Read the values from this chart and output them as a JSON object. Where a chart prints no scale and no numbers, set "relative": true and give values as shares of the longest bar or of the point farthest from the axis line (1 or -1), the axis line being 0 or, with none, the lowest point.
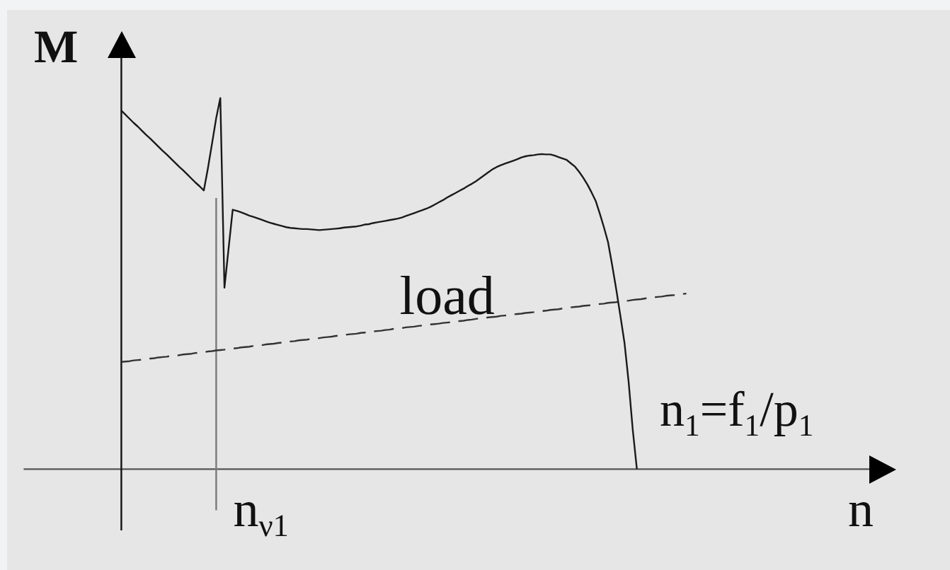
{
  "chart_data": {
    "type": "line",
    "relative": true,
    "marker": "none",
    "xlabel": "n",
    "ylabel": "M",
    "categories": [
      null,
      null,
      null,
      null,
      null,
      null,
      null,
      null,
      null,
      null,
      null,
      null,
      null,
      null,
      null,
      null,
      null,
      null,
      null,
      null,
      null,
      null,
      null,
      null,
      null,
      null,
      null,
      null,
      null,
      null,
      null,
      null,
      null,
      null,
      null,
      null,
      null,
      null,
      null,
      null,
      null,
      null,
      null,
      null,
      null,
      null,
      null,
      null,
      null,
      null,
      null,
      null,
      null,
      null,
      null,
      null,
      null,
      null,
      null,
      null,
      null,
      null,
      null,
      null,
      null,
      null,
      null,
      null,
      null,
      null,
      null,
      null,
      null,
      null,
      null,
      null,
      null,
      null,
      null,
      null,
      null,
      null,
      null,
      null,
      null,
      null,
      null,
      null,
      null,
      null,
      null,
      null,
      null,
      null,
      null,
      null,
      null,
      null,
      null,
      null,
      null,
      null,
      null,
      null,
      null,
      null,
      null,
      null,
      null,
      null,
      null,
      null,
      null,
      null,
      null,
      null,
      null,
      null,
      null,
      null,
      null,
      null,
      null,
      null,
      null,
      null,
      null,
      null,
      null,
      null,
      null,
      null,
      null,
      null,
      null,
      null,
      null,
      null
    ],
    "series": [
      {
        "color": "#1a1a1a",
        "values": [
          0.966,
          0.955,
          0.944,
          0.933,
          0.923,
          0.912,
          0.901,
          0.891,
          0.88,
          0.869,
          0.858,
          0.848,
          0.837,
          0.826,
          0.815,
          0.805,
          0.794,
          0.783,
          0.772,
          0.762,
          0.751,
          0.811,
          0.878,
          0.946,
          1,
          0.489,
          0.594,
          0.699,
          0.696,
          0.692,
          0.688,
          0.683,
          0.68,
          0.676,
          0.672,
          0.668,
          0.664,
          0.661,
          0.658,
          0.655,
          0.652,
          0.65,
          0.649,
          0.648,
          0.647,
          0.647,
          0.646,
          0.645,
          0.644,
          0.645,
          0.646,
          0.647,
          0.648,
          0.649,
          0.651,
          0.652,
          0.653,
          0.654,
          0.656,
          0.659,
          0.66,
          0.663,
          0.665,
          0.667,
          0.669,
          0.671,
          0.673,
          0.675,
          0.678,
          0.682,
          0.686,
          0.69,
          0.694,
          0.698,
          0.702,
          0.707,
          0.713,
          0.719,
          0.725,
          0.732,
          0.738,
          0.744,
          0.75,
          0.756,
          0.763,
          0.769,
          0.776,
          0.784,
          0.792,
          0.8,
          0.808,
          0.814,
          0.819,
          0.823,
          0.827,
          0.831,
          0.835,
          0.84,
          0.843,
          0.845,
          0.846,
          0.848,
          0.849,
          0.848,
          0.848,
          0.845,
          0.841,
          0.837,
          0.833,
          0.824,
          0.815,
          0.801,
          0.785,
          0.767,
          0.746,
          0.723,
          0.689,
          0.652,
          0.612,
          0.55,
          0.484,
          0.413,
          0.34,
          0.235,
          0.106,
          0,
          null,
          null,
          null,
          null,
          null,
          null,
          null,
          null,
          null,
          null,
          null,
          null
        ]
      },
      {
        "name": "load",
        "color": "#333333",
        "line_style": "dashed",
        "values": [
          0.289,
          0.29,
          0.291,
          0.293,
          0.294,
          0.295,
          0.297,
          0.298,
          0.299,
          0.301,
          0.302,
          0.303,
          0.305,
          0.306,
          0.307,
          0.309,
          0.31,
          0.311,
          0.313,
          0.314,
          0.315,
          0.317,
          0.318,
          0.32,
          0.321,
          0.322,
          0.324,
          0.325,
          0.326,
          0.328,
          0.329,
          0.33,
          0.332,
          0.333,
          0.334,
          0.336,
          0.337,
          0.338,
          0.34,
          0.341,
          0.342,
          0.344,
          0.345,
          0.347,
          0.348,
          0.349,
          0.351,
          0.352,
          0.353,
          0.355,
          0.356,
          0.357,
          0.359,
          0.36,
          0.361,
          0.363,
          0.364,
          0.365,
          0.367,
          0.368,
          0.369,
          0.371,
          0.372,
          0.373,
          0.375,
          0.376,
          0.378,
          0.379,
          0.38,
          0.382,
          0.383,
          0.384,
          0.386,
          0.387,
          0.388,
          0.39,
          0.391,
          0.392,
          0.394,
          0.395,
          0.396,
          0.398,
          0.399,
          0.4,
          0.402,
          0.403,
          0.405,
          0.406,
          0.407,
          0.409,
          0.41,
          0.411,
          0.413,
          0.414,
          0.415,
          0.417,
          0.418,
          0.419,
          0.421,
          0.422,
          0.423,
          0.425,
          0.426,
          0.427,
          0.429,
          0.43,
          0.431,
          0.433,
          0.434,
          0.436,
          0.437,
          0.438,
          0.44,
          0.441,
          0.442,
          0.444,
          0.445,
          0.446,
          0.448,
          0.449,
          0.45,
          0.452,
          0.453,
          0.454,
          0.456,
          0.457,
          0.458,
          0.46,
          0.461,
          0.463,
          0.464,
          0.465,
          0.467,
          0.468,
          0.469,
          0.471,
          0.472,
          0.473
        ]
      }
    ],
    "ref_lines": [
      {
        "axis": "x",
        "label": "n$_{ν1}$",
        "color": "#7a7a7a"
      }
    ],
    "annotations": [
      "n$_{1}$=f$_{1}$/p$_{1}$"
    ]
  }
}
